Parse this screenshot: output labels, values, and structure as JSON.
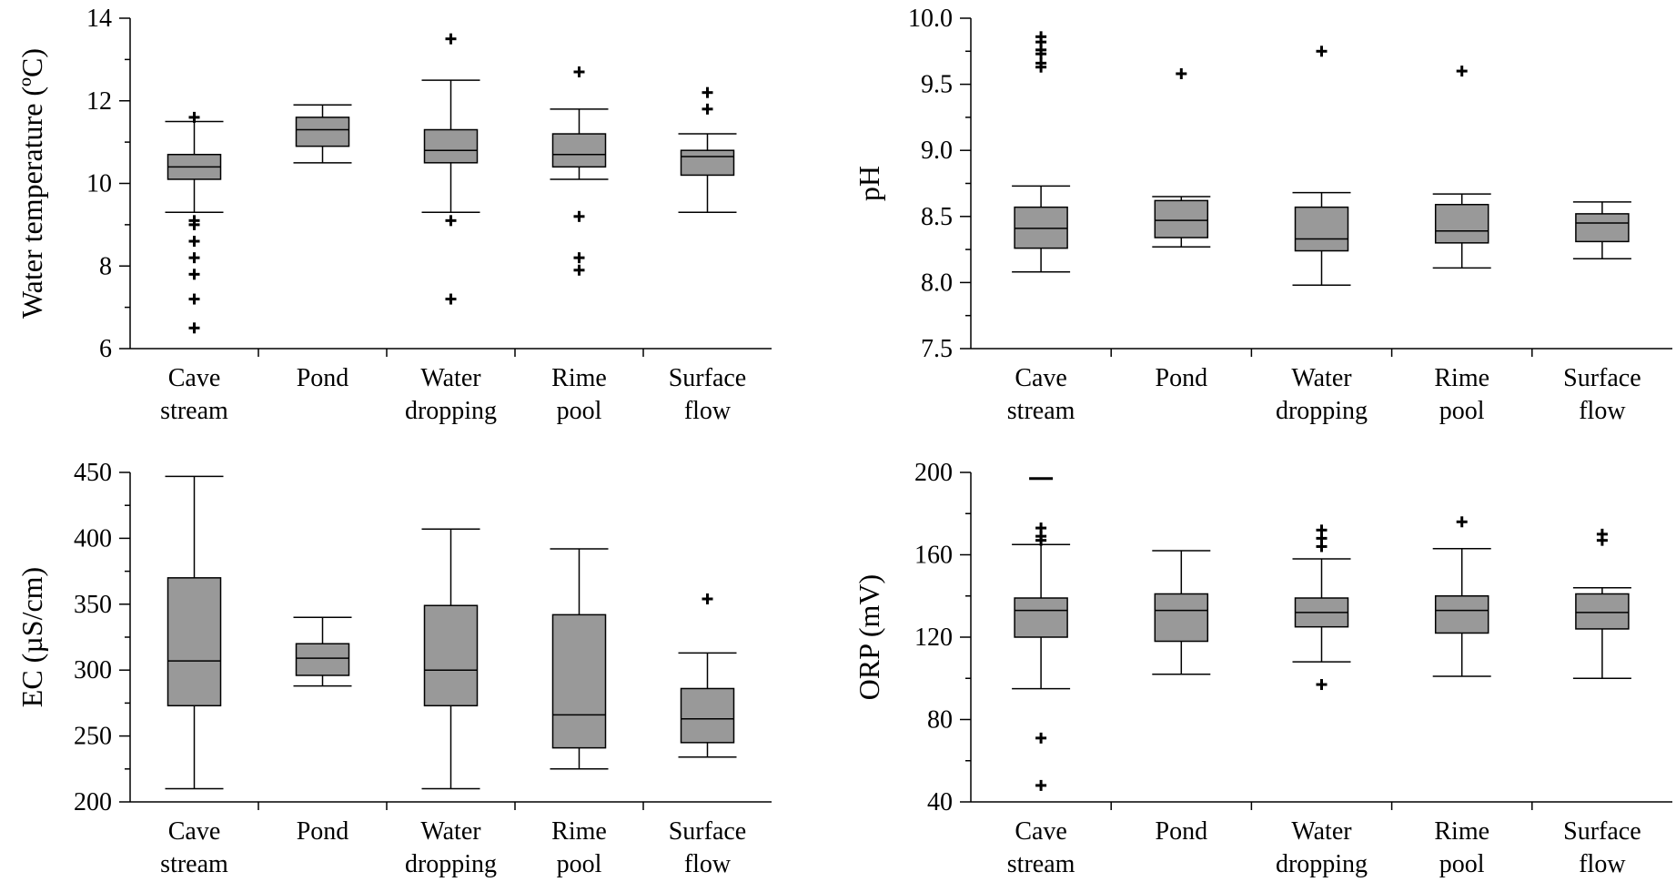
{
  "style": {
    "box_fill": "#999999",
    "line_color": "#000000",
    "background": "#ffffff"
  },
  "chart_data": [
    {
      "type": "box",
      "ylabel": "Water temperature (ºC)",
      "ylim": [
        6,
        14
      ],
      "yticks": [
        6,
        8,
        10,
        12,
        14
      ],
      "yticklabels": [
        "6",
        "8",
        "10",
        "12",
        "14"
      ],
      "categories": [
        {
          "line1": "Cave",
          "line2": "stream"
        },
        {
          "line1": "Pond",
          "line2": ""
        },
        {
          "line1": "Water",
          "line2": "dropping"
        },
        {
          "line1": "Rime",
          "line2": "pool"
        },
        {
          "line1": "Surface",
          "line2": "flow"
        }
      ],
      "boxes": [
        {
          "whisker_low": 9.3,
          "q1": 10.1,
          "median": 10.4,
          "q3": 10.7,
          "whisker_high": 11.5,
          "outliers": [
            11.6,
            9.1,
            9.0,
            8.6,
            8.2,
            7.8,
            7.2,
            6.5
          ]
        },
        {
          "whisker_low": 10.5,
          "q1": 10.9,
          "median": 11.3,
          "q3": 11.6,
          "whisker_high": 11.9,
          "outliers": []
        },
        {
          "whisker_low": 9.3,
          "q1": 10.5,
          "median": 10.8,
          "q3": 11.3,
          "whisker_high": 12.5,
          "outliers": [
            13.5,
            9.1,
            7.2
          ]
        },
        {
          "whisker_low": 10.1,
          "q1": 10.4,
          "median": 10.7,
          "q3": 11.2,
          "whisker_high": 11.8,
          "outliers": [
            12.7,
            9.2,
            8.2,
            7.9
          ]
        },
        {
          "whisker_low": 9.3,
          "q1": 10.2,
          "median": 10.65,
          "q3": 10.8,
          "whisker_high": 11.2,
          "outliers": [
            12.2,
            11.8
          ]
        }
      ]
    },
    {
      "type": "box",
      "ylabel": "pH",
      "ylim": [
        7.5,
        10.0
      ],
      "yticks": [
        7.5,
        8.0,
        8.5,
        9.0,
        9.5,
        10.0
      ],
      "yticklabels": [
        "7.5",
        "8.0",
        "8.5",
        "9.0",
        "9.5",
        "10.0"
      ],
      "categories": [
        {
          "line1": "Cave",
          "line2": "stream"
        },
        {
          "line1": "Pond",
          "line2": ""
        },
        {
          "line1": "Water",
          "line2": "dropping"
        },
        {
          "line1": "Rime",
          "line2": "pool"
        },
        {
          "line1": "Surface",
          "line2": "flow"
        }
      ],
      "boxes": [
        {
          "whisker_low": 8.08,
          "q1": 8.26,
          "median": 8.41,
          "q3": 8.57,
          "whisker_high": 8.73,
          "outliers": [
            9.86,
            9.82,
            9.76,
            9.73,
            9.66,
            9.63
          ]
        },
        {
          "whisker_low": 8.27,
          "q1": 8.34,
          "median": 8.47,
          "q3": 8.62,
          "whisker_high": 8.65,
          "outliers": [
            9.58
          ]
        },
        {
          "whisker_low": 7.98,
          "q1": 8.24,
          "median": 8.33,
          "q3": 8.57,
          "whisker_high": 8.68,
          "outliers": [
            9.75
          ]
        },
        {
          "whisker_low": 8.11,
          "q1": 8.3,
          "median": 8.39,
          "q3": 8.59,
          "whisker_high": 8.67,
          "outliers": [
            9.6
          ]
        },
        {
          "whisker_low": 8.18,
          "q1": 8.31,
          "median": 8.45,
          "q3": 8.52,
          "whisker_high": 8.61,
          "outliers": []
        }
      ]
    },
    {
      "type": "box",
      "ylabel": "EC (µS/cm)",
      "ylim": [
        200,
        450
      ],
      "yticks": [
        200,
        250,
        300,
        350,
        400,
        450
      ],
      "yticklabels": [
        "200",
        "250",
        "300",
        "350",
        "400",
        "450"
      ],
      "categories": [
        {
          "line1": "Cave",
          "line2": "stream"
        },
        {
          "line1": "Pond",
          "line2": ""
        },
        {
          "line1": "Water",
          "line2": "dropping"
        },
        {
          "line1": "Rime",
          "line2": "pool"
        },
        {
          "line1": "Surface",
          "line2": "flow"
        }
      ],
      "boxes": [
        {
          "whisker_low": 210,
          "q1": 273,
          "median": 307,
          "q3": 370,
          "whisker_high": 447,
          "outliers": []
        },
        {
          "whisker_low": 288,
          "q1": 296,
          "median": 309,
          "q3": 320,
          "whisker_high": 340,
          "outliers": []
        },
        {
          "whisker_low": 210,
          "q1": 273,
          "median": 300,
          "q3": 349,
          "whisker_high": 407,
          "outliers": []
        },
        {
          "whisker_low": 225,
          "q1": 241,
          "median": 266,
          "q3": 342,
          "whisker_high": 392,
          "outliers": []
        },
        {
          "whisker_low": 234,
          "q1": 245,
          "median": 263,
          "q3": 286,
          "whisker_high": 313,
          "outliers": [
            354
          ]
        }
      ]
    },
    {
      "type": "box",
      "ylabel": "ORP (mV)",
      "ylim": [
        40,
        200
      ],
      "yticks": [
        40,
        80,
        120,
        160,
        200
      ],
      "yticklabels": [
        "40",
        "80",
        "120",
        "160",
        "200"
      ],
      "categories": [
        {
          "line1": "Cave",
          "line2": "stream"
        },
        {
          "line1": "Pond",
          "line2": ""
        },
        {
          "line1": "Water",
          "line2": "dropping"
        },
        {
          "line1": "Rime",
          "line2": "pool"
        },
        {
          "line1": "Surface",
          "line2": "flow"
        }
      ],
      "boxes": [
        {
          "whisker_low": 95,
          "q1": 120,
          "median": 133,
          "q3": 139,
          "whisker_high": 165,
          "outliers": [
            173,
            169,
            167,
            71,
            48
          ],
          "extra_dash": 197
        },
        {
          "whisker_low": 102,
          "q1": 118,
          "median": 133,
          "q3": 141,
          "whisker_high": 162,
          "outliers": []
        },
        {
          "whisker_low": 108,
          "q1": 125,
          "median": 132,
          "q3": 139,
          "whisker_high": 158,
          "outliers": [
            172,
            168,
            164,
            97
          ]
        },
        {
          "whisker_low": 101,
          "q1": 122,
          "median": 133,
          "q3": 140,
          "whisker_high": 163,
          "outliers": [
            176
          ]
        },
        {
          "whisker_low": 100,
          "q1": 124,
          "median": 132,
          "q3": 141,
          "whisker_high": 144,
          "outliers": [
            170,
            167
          ]
        }
      ]
    }
  ]
}
